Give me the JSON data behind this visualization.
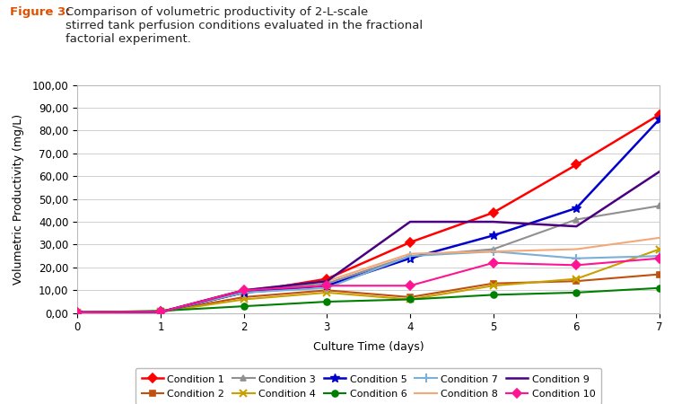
{
  "title_bold": "Figure 3:",
  "title_rest": " Comparison of volumetric productivity of 2-L-scale stirred tank perfusion conditions evaluated in the fractional factorial experiment.",
  "xlabel": "Culture Time (days)",
  "ylabel": "Volumetric Productivity (mg/L)",
  "xlim": [
    0,
    7
  ],
  "ylim": [
    0,
    100
  ],
  "yticks": [
    0,
    10,
    20,
    30,
    40,
    50,
    60,
    70,
    80,
    90,
    100
  ],
  "ytick_labels": [
    "0,00",
    "10,00",
    "20,00",
    "30,00",
    "40,00",
    "50,00",
    "60,00",
    "70,00",
    "80,00",
    "90,00",
    "100,00"
  ],
  "xticks": [
    0,
    1,
    2,
    3,
    4,
    5,
    6,
    7
  ],
  "conditions": {
    "Condition 1": {
      "color": "#FF0000",
      "marker": "D",
      "lw": 1.8,
      "data": [
        [
          0,
          0.3
        ],
        [
          1,
          0.5
        ],
        [
          2,
          9
        ],
        [
          3,
          15
        ],
        [
          4,
          31
        ],
        [
          5,
          44
        ],
        [
          6,
          65
        ],
        [
          7,
          87
        ]
      ]
    },
    "Condition 2": {
      "color": "#C05010",
      "marker": "s",
      "lw": 1.5,
      "data": [
        [
          0,
          0.3
        ],
        [
          1,
          0.5
        ],
        [
          2,
          7
        ],
        [
          3,
          10
        ],
        [
          4,
          7
        ],
        [
          5,
          13
        ],
        [
          6,
          14
        ],
        [
          7,
          17
        ]
      ]
    },
    "Condition 3": {
      "color": "#909090",
      "marker": "^",
      "lw": 1.5,
      "data": [
        [
          0,
          0.3
        ],
        [
          1,
          0.5
        ],
        [
          2,
          10
        ],
        [
          3,
          13
        ],
        [
          4,
          25
        ],
        [
          5,
          28
        ],
        [
          6,
          41
        ],
        [
          7,
          47
        ]
      ]
    },
    "Condition 4": {
      "color": "#C8A000",
      "marker": "x",
      "lw": 1.5,
      "data": [
        [
          0,
          0.3
        ],
        [
          1,
          0.5
        ],
        [
          2,
          6
        ],
        [
          3,
          9
        ],
        [
          4,
          6
        ],
        [
          5,
          12
        ],
        [
          6,
          15
        ],
        [
          7,
          28
        ]
      ]
    },
    "Condition 5": {
      "color": "#0000CC",
      "marker": "*",
      "lw": 1.8,
      "data": [
        [
          0,
          0.3
        ],
        [
          1,
          0.5
        ],
        [
          2,
          9
        ],
        [
          3,
          12
        ],
        [
          4,
          24
        ],
        [
          5,
          34
        ],
        [
          6,
          46
        ],
        [
          7,
          85
        ]
      ]
    },
    "Condition 6": {
      "color": "#008000",
      "marker": "o",
      "lw": 1.5,
      "data": [
        [
          0,
          0.3
        ],
        [
          1,
          1
        ],
        [
          2,
          3
        ],
        [
          3,
          5
        ],
        [
          4,
          6
        ],
        [
          5,
          8
        ],
        [
          6,
          9
        ],
        [
          7,
          11
        ]
      ]
    },
    "Condition 7": {
      "color": "#7BAFD4",
      "marker": "+",
      "lw": 1.5,
      "data": [
        [
          0,
          0.3
        ],
        [
          1,
          0.5
        ],
        [
          2,
          9
        ],
        [
          3,
          11
        ],
        [
          4,
          25
        ],
        [
          5,
          27
        ],
        [
          6,
          24
        ],
        [
          7,
          25
        ]
      ]
    },
    "Condition 8": {
      "color": "#F4A878",
      "marker": "none",
      "lw": 1.5,
      "data": [
        [
          0,
          0.3
        ],
        [
          1,
          0.5
        ],
        [
          2,
          10
        ],
        [
          3,
          14
        ],
        [
          4,
          26
        ],
        [
          5,
          27
        ],
        [
          6,
          28
        ],
        [
          7,
          33
        ]
      ]
    },
    "Condition 9": {
      "color": "#4B0082",
      "marker": "none",
      "lw": 1.8,
      "data": [
        [
          0,
          0.3
        ],
        [
          1,
          0.5
        ],
        [
          2,
          10
        ],
        [
          3,
          14
        ],
        [
          4,
          40
        ],
        [
          5,
          40
        ],
        [
          6,
          38
        ],
        [
          7,
          62
        ]
      ]
    },
    "Condition 10": {
      "color": "#FF1493",
      "marker": "D",
      "lw": 1.5,
      "data": [
        [
          0,
          0.3
        ],
        [
          1,
          0.5
        ],
        [
          2,
          10
        ],
        [
          3,
          12
        ],
        [
          4,
          12
        ],
        [
          5,
          22
        ],
        [
          6,
          21
        ],
        [
          7,
          24
        ]
      ]
    }
  },
  "legend_order": [
    "Condition 1",
    "Condition 2",
    "Condition 3",
    "Condition 4",
    "Condition 5",
    "Condition 6",
    "Condition 7",
    "Condition 8",
    "Condition 9",
    "Condition 10"
  ],
  "bg_color": "#FFFFFF",
  "plot_bg_color": "#FFFFFF",
  "grid_color": "#D0D0D0",
  "title_color_bold": "#E05000",
  "title_color_rest": "#222222",
  "title_fontsize": 9.5,
  "axis_fontsize": 9,
  "tick_fontsize": 8.5,
  "legend_fontsize": 8
}
